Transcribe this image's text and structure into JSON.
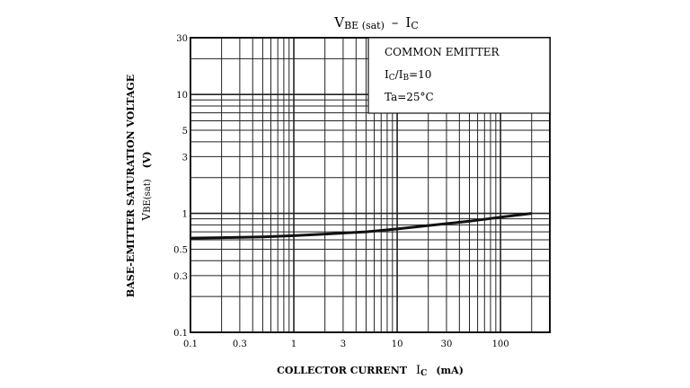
{
  "chart_data": {
    "type": "line",
    "title": {
      "main": "V",
      "main_sub": "BE (sat)",
      "dash": "–",
      "var": "I",
      "var_sub": "C"
    },
    "xlabel": {
      "text": "COLLECTOR CURRENT",
      "var": "I",
      "var_sub": "C",
      "unit": "(mA)"
    },
    "ylabel": {
      "line1": "BASE-EMITTER SATURATION VOLTAGE",
      "var": "V",
      "var_sub": "BE(sat)",
      "unit": "(V)"
    },
    "x_scale": "log",
    "y_scale": "log",
    "xlim": [
      0.1,
      300
    ],
    "ylim": [
      0.1,
      30
    ],
    "grid": true,
    "x_ticks": [
      {
        "value": 0.1,
        "label": "0.1"
      },
      {
        "value": 0.3,
        "label": "0.3"
      },
      {
        "value": 1,
        "label": "1"
      },
      {
        "value": 3,
        "label": "3"
      },
      {
        "value": 10,
        "label": "10"
      },
      {
        "value": 30,
        "label": "30"
      },
      {
        "value": 100,
        "label": "100"
      }
    ],
    "y_ticks": [
      {
        "value": 0.1,
        "label": "0.1"
      },
      {
        "value": 0.3,
        "label": "0.3"
      },
      {
        "value": 0.5,
        "label": "0.5"
      },
      {
        "value": 1,
        "label": "1"
      },
      {
        "value": 3,
        "label": "3"
      },
      {
        "value": 5,
        "label": "5"
      },
      {
        "value": 10,
        "label": "10"
      },
      {
        "value": 30,
        "label": "30"
      }
    ],
    "series": [
      {
        "x": [
          0.1,
          0.2,
          0.5,
          1,
          2,
          5,
          10,
          20,
          50,
          100,
          200
        ],
        "y": [
          0.62,
          0.625,
          0.635,
          0.65,
          0.67,
          0.7,
          0.74,
          0.79,
          0.86,
          0.93,
          1.0
        ]
      }
    ],
    "legend": {
      "placement": "top-right",
      "lines": [
        {
          "text": "COMMON EMITTER"
        },
        {
          "var": "I",
          "var_sub": "C",
          "sep": "/",
          "var2": "I",
          "var2_sub": "B",
          "rest": "=10"
        },
        {
          "text": "Ta=25°C"
        }
      ]
    }
  },
  "colors": {
    "line": "#111111",
    "grid": "#222222",
    "background": "#ffffff"
  }
}
